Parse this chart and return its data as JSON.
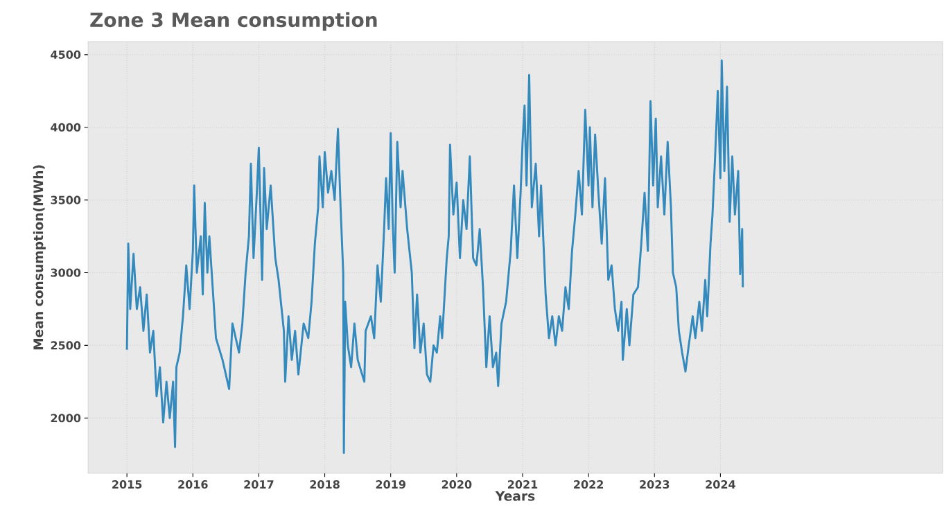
{
  "chart_data": {
    "type": "line",
    "title": "Zone 3 Mean consumption",
    "xlabel": "Years",
    "ylabel": "Mean consumption(MWh)",
    "xlim": [
      2014.41,
      2027.37
    ],
    "ylim": [
      1620,
      4590
    ],
    "xticks": [
      2015,
      2016,
      2017,
      2018,
      2019,
      2020,
      2021,
      2022,
      2023,
      2024
    ],
    "yticks": [
      2000,
      2500,
      3000,
      3500,
      4000,
      4500
    ],
    "grid": true,
    "line_style": "solid",
    "series": [
      {
        "color": "#348abd",
        "x": [
          2015.0,
          2015.02,
          2015.05,
          2015.1,
          2015.15,
          2015.2,
          2015.25,
          2015.3,
          2015.35,
          2015.4,
          2015.45,
          2015.5,
          2015.55,
          2015.6,
          2015.65,
          2015.7,
          2015.73,
          2015.75,
          2015.8,
          2015.85,
          2015.9,
          2015.95,
          2016.0,
          2016.02,
          2016.06,
          2016.12,
          2016.15,
          2016.18,
          2016.22,
          2016.25,
          2016.3,
          2016.35,
          2016.45,
          2016.5,
          2016.55,
          2016.6,
          2016.7,
          2016.75,
          2016.8,
          2016.85,
          2016.88,
          2016.92,
          2016.97,
          2017.0,
          2017.05,
          2017.08,
          2017.12,
          2017.18,
          2017.25,
          2017.3,
          2017.38,
          2017.4,
          2017.45,
          2017.5,
          2017.55,
          2017.6,
          2017.68,
          2017.75,
          2017.8,
          2017.85,
          2017.9,
          2017.92,
          2017.97,
          2018.0,
          2018.05,
          2018.1,
          2018.15,
          2018.2,
          2018.24,
          2018.28,
          2018.29,
          2018.31,
          2018.35,
          2018.4,
          2018.45,
          2018.5,
          2018.6,
          2018.62,
          2018.7,
          2018.75,
          2018.8,
          2018.85,
          2018.9,
          2018.93,
          2018.97,
          2019.0,
          2019.03,
          2019.06,
          2019.1,
          2019.15,
          2019.18,
          2019.25,
          2019.32,
          2019.36,
          2019.4,
          2019.45,
          2019.5,
          2019.55,
          2019.6,
          2019.65,
          2019.7,
          2019.75,
          2019.78,
          2019.85,
          2019.88,
          2019.9,
          2019.95,
          2020.0,
          2020.05,
          2020.1,
          2020.15,
          2020.2,
          2020.25,
          2020.3,
          2020.35,
          2020.4,
          2020.45,
          2020.5,
          2020.55,
          2020.6,
          2020.63,
          2020.68,
          2020.75,
          2020.82,
          2020.87,
          2020.92,
          2020.97,
          2021.0,
          2021.03,
          2021.06,
          2021.1,
          2021.14,
          2021.2,
          2021.25,
          2021.28,
          2021.35,
          2021.4,
          2021.45,
          2021.5,
          2021.55,
          2021.6,
          2021.65,
          2021.7,
          2021.75,
          2021.8,
          2021.85,
          2021.9,
          2021.95,
          2022.0,
          2022.02,
          2022.06,
          2022.1,
          2022.15,
          2022.2,
          2022.25,
          2022.3,
          2022.35,
          2022.4,
          2022.45,
          2022.5,
          2022.52,
          2022.58,
          2022.62,
          2022.68,
          2022.75,
          2022.8,
          2022.85,
          2022.9,
          2022.94,
          2022.98,
          2023.02,
          2023.05,
          2023.1,
          2023.15,
          2023.2,
          2023.25,
          2023.28,
          2023.33,
          2023.37,
          2023.42,
          2023.47,
          2023.52,
          2023.58,
          2023.62,
          2023.68,
          2023.72,
          2023.77,
          2023.8,
          2023.85,
          2023.88,
          2023.92,
          2023.96,
          2024.0,
          2024.02,
          2024.06,
          2024.1,
          2024.14,
          2024.18,
          2024.22,
          2024.27,
          2024.3,
          2024.33,
          2024.34
        ],
        "values": [
          2470,
          3200,
          2750,
          3130,
          2750,
          2900,
          2600,
          2850,
          2450,
          2600,
          2150,
          2350,
          1970,
          2250,
          2000,
          2250,
          1800,
          2350,
          2450,
          2700,
          3050,
          2750,
          3150,
          3600,
          3000,
          3250,
          2850,
          3480,
          3000,
          3250,
          2900,
          2550,
          2400,
          2300,
          2200,
          2650,
          2450,
          2650,
          3000,
          3250,
          3750,
          3100,
          3550,
          3860,
          2950,
          3720,
          3300,
          3600,
          3100,
          2950,
          2600,
          2250,
          2700,
          2400,
          2600,
          2300,
          2650,
          2550,
          2800,
          3200,
          3450,
          3800,
          3450,
          3830,
          3550,
          3700,
          3500,
          3990,
          3450,
          3000,
          1760,
          2800,
          2500,
          2350,
          2650,
          2400,
          2250,
          2600,
          2700,
          2550,
          3050,
          2800,
          3300,
          3650,
          3300,
          3960,
          3350,
          3000,
          3900,
          3450,
          3700,
          3300,
          3000,
          2480,
          2850,
          2450,
          2650,
          2300,
          2250,
          2500,
          2450,
          2700,
          2550,
          3100,
          3250,
          3880,
          3400,
          3620,
          3100,
          3500,
          3300,
          3800,
          3100,
          3050,
          3300,
          2900,
          2350,
          2700,
          2350,
          2450,
          2220,
          2650,
          2800,
          3150,
          3600,
          3100,
          3550,
          3900,
          4150,
          3600,
          4360,
          3450,
          3750,
          3250,
          3600,
          2850,
          2550,
          2700,
          2500,
          2700,
          2600,
          2900,
          2750,
          3150,
          3400,
          3700,
          3400,
          4120,
          3600,
          4000,
          3450,
          3950,
          3550,
          3200,
          3650,
          2950,
          3050,
          2750,
          2600,
          2800,
          2400,
          2750,
          2500,
          2850,
          2900,
          3200,
          3550,
          3150,
          4180,
          3600,
          4060,
          3450,
          3800,
          3400,
          3900,
          3450,
          3000,
          2900,
          2600,
          2450,
          2320,
          2500,
          2700,
          2550,
          2800,
          2600,
          2950,
          2700,
          3200,
          3400,
          3800,
          4250,
          3650,
          4460,
          3700,
          4280,
          3350,
          3800,
          3400,
          3700,
          2990,
          3300,
          2900
        ]
      }
    ]
  }
}
